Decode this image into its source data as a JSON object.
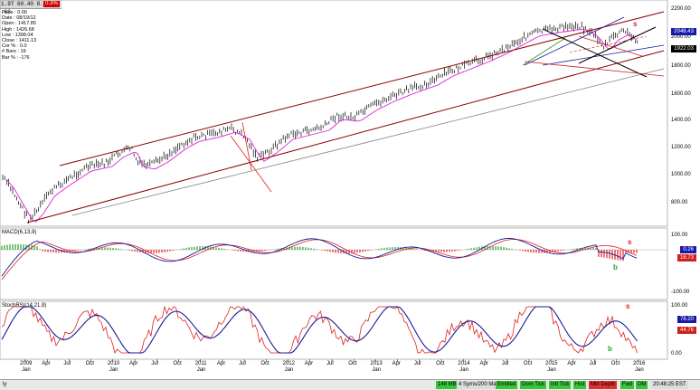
{
  "header": {
    "readout": "1.97 60.40 8.46 .63",
    "badge": "0.3%"
  },
  "info_panel": [
    "Price : 0.00",
    "Date : 08/19/12",
    "Open : 1417.85",
    "High : 1426.68",
    "Low : 1398.04",
    "Close : 1411.13",
    "Cor % : 0.0",
    "# Bars : 19",
    "Bar % : -176"
  ],
  "price_axis": [
    "2200.00",
    "2000.00",
    "1800.00",
    "1600.00",
    "1400.00",
    "1200.00",
    "1000.00",
    "800.00"
  ],
  "price_tags": {
    "upper": "2048.43",
    "lower": "1922.03"
  },
  "macd": {
    "label": "MACD(6,13,9)",
    "axis": [
      "100.00",
      "0.00",
      "-100.00"
    ],
    "tags": {
      "upper": "0.26",
      "lower": "16.73"
    }
  },
  "stoch": {
    "label": "StochRSI(14,21,9)",
    "axis": [
      "100.00",
      "50.00",
      "0.00"
    ],
    "tags": {
      "upper": "78.20",
      "lower": "44.76"
    }
  },
  "markers": {
    "sell": "s",
    "buy": "b"
  },
  "x_axis": [
    {
      "t": "2009",
      "s": "Jan"
    },
    {
      "t": "Apr"
    },
    {
      "t": "Jul"
    },
    {
      "t": "Oct"
    },
    {
      "t": "2010",
      "s": "Jan"
    },
    {
      "t": "Apr"
    },
    {
      "t": "Jul"
    },
    {
      "t": "Oct"
    },
    {
      "t": "2011",
      "s": "Jan"
    },
    {
      "t": "Apr"
    },
    {
      "t": "Jul"
    },
    {
      "t": "Oct"
    },
    {
      "t": "2012",
      "s": "Jan"
    },
    {
      "t": "Apr"
    },
    {
      "t": "Jul"
    },
    {
      "t": "Oct"
    },
    {
      "t": "2013",
      "s": "Jan"
    },
    {
      "t": "Apr"
    },
    {
      "t": "Jul"
    },
    {
      "t": "Oct"
    },
    {
      "t": "2014",
      "s": "Jan"
    },
    {
      "t": "Apr"
    },
    {
      "t": "Jul"
    },
    {
      "t": "Oct"
    },
    {
      "t": "2015",
      "s": "Jan"
    },
    {
      "t": "Apr"
    },
    {
      "t": "Jul"
    },
    {
      "t": "Oct"
    },
    {
      "t": "2016",
      "s": "Jan"
    }
  ],
  "status": {
    "left": "ly",
    "items": [
      {
        "label": "148 MB",
        "style": "green"
      },
      {
        "label": "4 Syms/200 Max",
        "style": "gray"
      },
      {
        "label": "Emitted",
        "style": "green"
      },
      {
        "label": "Dom Tick",
        "style": "green"
      },
      {
        "label": "Intl Tick",
        "style": "green"
      },
      {
        "label": "Hist",
        "style": "green"
      },
      {
        "label": "Mkt Depth",
        "style": "red"
      },
      {
        "label": "Fwd",
        "style": "green"
      },
      {
        "label": "DM",
        "style": "green"
      },
      {
        "label": "20:48:25 EST",
        "style": "gray"
      }
    ]
  },
  "colors": {
    "price_bars": "#000000",
    "ma": "#e020e0",
    "channel": "#8b0000",
    "support": "#808080",
    "macd_line": "#1a1a99",
    "signal_line": "#e02020",
    "hist_pos": "#2aa02a",
    "hist_neg": "#e02020",
    "tag_blue": "#1a1aaa",
    "tag_red": "#d02020",
    "tag_black": "#000000"
  }
}
